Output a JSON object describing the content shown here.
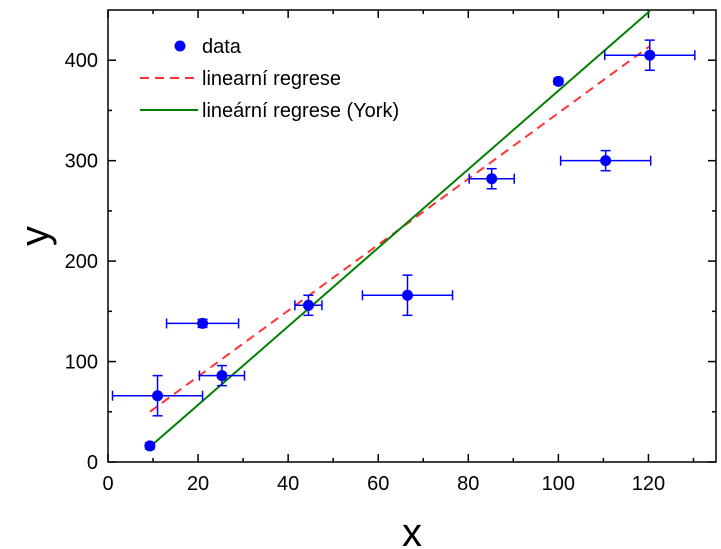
{
  "chart_data": {
    "type": "scatter",
    "xlabel": "x",
    "ylabel": "y",
    "xlim": [
      0,
      135
    ],
    "ylim": [
      0,
      450
    ],
    "xticks": [
      0,
      20,
      40,
      60,
      80,
      100,
      120
    ],
    "yticks": [
      0,
      100,
      200,
      300,
      400
    ],
    "grid": false,
    "legend_position": "top-left",
    "series": [
      {
        "name": "data",
        "kind": "points",
        "color": "#0000ff",
        "points": [
          {
            "x": 9.3,
            "y": 16,
            "xerr": 0.4,
            "yerr": 3
          },
          {
            "x": 11.0,
            "y": 66,
            "xerr": 10.0,
            "yerr": 20
          },
          {
            "x": 21.0,
            "y": 138,
            "xerr": 8.0,
            "yerr": 4
          },
          {
            "x": 25.3,
            "y": 86,
            "xerr": 5.0,
            "yerr": 10
          },
          {
            "x": 44.5,
            "y": 156,
            "xerr": 3.0,
            "yerr": 10
          },
          {
            "x": 66.5,
            "y": 166,
            "xerr": 10.0,
            "yerr": 20
          },
          {
            "x": 85.2,
            "y": 282,
            "xerr": 5.0,
            "yerr": 10
          },
          {
            "x": 100.0,
            "y": 379,
            "xerr": 0.4,
            "yerr": 3
          },
          {
            "x": 110.5,
            "y": 300,
            "xerr": 10.0,
            "yerr": 10
          },
          {
            "x": 120.3,
            "y": 405,
            "xerr": 10.0,
            "yerr": 15
          }
        ]
      },
      {
        "name": "linearní regrese",
        "kind": "line",
        "dash": true,
        "color": "#ff3333",
        "points": [
          {
            "x": 9.3,
            "y": 50
          },
          {
            "x": 120.3,
            "y": 414
          }
        ]
      },
      {
        "name": "lineární regrese (York)",
        "kind": "line",
        "dash": false,
        "color": "#008000",
        "points": [
          {
            "x": 9.3,
            "y": 15
          },
          {
            "x": 120.3,
            "y": 449
          }
        ]
      }
    ]
  }
}
